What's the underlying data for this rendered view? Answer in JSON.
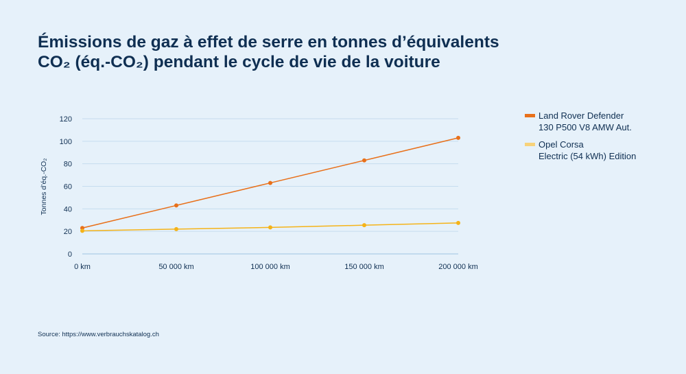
{
  "title": {
    "line1": "Émissions de gaz à effet de serre en tonnes d’équivalents",
    "line2": "CO₂ (éq.-CO₂) pendant le cycle de vie de la voiture"
  },
  "source": "Source: https://www.verbrauchskatalog.ch",
  "colors": {
    "background": "#e6f1fa",
    "text": "#0f2f52",
    "grid": "#c5dcef",
    "land_rover": "#e8701a",
    "opel": "#f5b318",
    "opel_legend": "#f7d27a"
  },
  "chart_data": {
    "type": "line",
    "title": "Émissions de gaz à effet de serre en tonnes d’équivalents CO₂ (éq.-CO₂) pendant le cycle de vie de la voiture",
    "xlabel": "",
    "ylabel": "Tonnes d’éq.-CO₂",
    "categories": [
      "0 km",
      "50 000 km",
      "100 000 km",
      "150 000 km",
      "200 000 km"
    ],
    "x": [
      0,
      50000,
      100000,
      150000,
      200000
    ],
    "xlim": [
      0,
      200000
    ],
    "ylim": [
      0,
      120
    ],
    "yticks": [
      "0",
      "20",
      "40",
      "60",
      "80",
      "100",
      "120"
    ],
    "grid": true,
    "legend_position": "right",
    "series": [
      {
        "name": "Land Rover Defender 130 P500 V8 AMW Aut.",
        "legend_lines": [
          "Land Rover Defender",
          "130 P500 V8 AMW Aut."
        ],
        "values": [
          23,
          43,
          63,
          83,
          103
        ]
      },
      {
        "name": "Opel Corsa Electric (54 kWh) Edition",
        "legend_lines": [
          "Opel Corsa",
          "Electric (54 kWh) Edition"
        ],
        "values": [
          20.5,
          22,
          23.5,
          25.5,
          27.5
        ]
      }
    ]
  }
}
